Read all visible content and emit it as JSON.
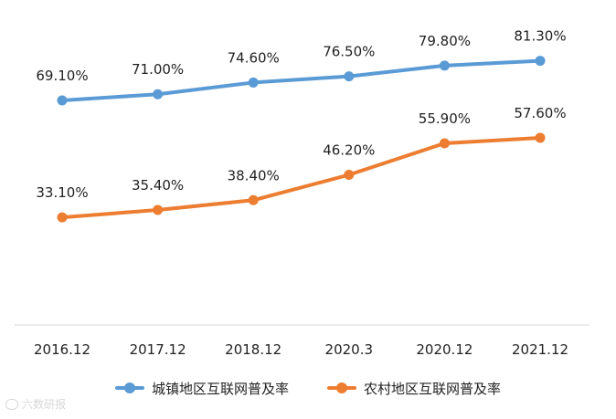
{
  "chart_data": {
    "type": "line",
    "categories": [
      "2016.12",
      "2017.12",
      "2018.12",
      "2020.3",
      "2020.12",
      "2021.12"
    ],
    "series": [
      {
        "name": "城镇地区互联网普及率",
        "values": [
          69.1,
          71.0,
          74.6,
          76.5,
          79.8,
          81.3
        ],
        "labels": [
          "69.10%",
          "71.00%",
          "74.60%",
          "76.50%",
          "79.80%",
          "81.30%"
        ],
        "color": "#5b9bd5"
      },
      {
        "name": "农村地区互联网普及率",
        "values": [
          33.1,
          35.4,
          38.4,
          46.2,
          55.9,
          57.6
        ],
        "labels": [
          "33.10%",
          "35.40%",
          "38.40%",
          "46.20%",
          "55.90%",
          "57.60%"
        ],
        "color": "#ed7d31"
      }
    ],
    "ylim": [
      0,
      90
    ],
    "grid": false,
    "y_axis_visible": false,
    "legend_position": "bottom"
  },
  "watermark": {
    "text": "六数研报"
  }
}
